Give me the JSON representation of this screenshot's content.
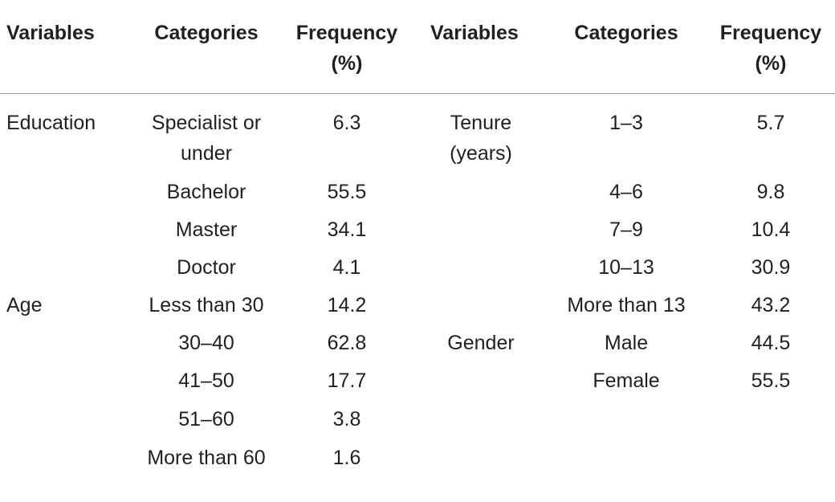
{
  "headers": [
    "Variables",
    "Categories",
    "Frequency (%)",
    "Variables",
    "Categories",
    "Frequency (%)"
  ],
  "left_rows": [
    {
      "variable": "Education",
      "category": "Specialist or under",
      "frequency": "6.3"
    },
    {
      "variable": "",
      "category": "Bachelor",
      "frequency": "55.5"
    },
    {
      "variable": "",
      "category": "Master",
      "frequency": "34.1"
    },
    {
      "variable": "",
      "category": "Doctor",
      "frequency": "4.1"
    },
    {
      "variable": "Age",
      "category": "Less than 30",
      "frequency": "14.2"
    },
    {
      "variable": "",
      "category": "30–40",
      "frequency": "62.8"
    },
    {
      "variable": "",
      "category": "41–50",
      "frequency": "17.7"
    },
    {
      "variable": "",
      "category": "51–60",
      "frequency": "3.8"
    },
    {
      "variable": "",
      "category": "More than 60",
      "frequency": "1.6"
    }
  ],
  "right_rows": [
    {
      "variable": "Tenure (years)",
      "category": "1–3",
      "frequency": "5.7"
    },
    {
      "variable": "",
      "category": "4–6",
      "frequency": "9.8"
    },
    {
      "variable": "",
      "category": "7–9",
      "frequency": "10.4"
    },
    {
      "variable": "",
      "category": "10–13",
      "frequency": "30.9"
    },
    {
      "variable": "",
      "category": "More than 13",
      "frequency": "43.2"
    },
    {
      "variable": "Gender",
      "category": "Male",
      "frequency": "44.5"
    },
    {
      "variable": "",
      "category": "Female",
      "frequency": "55.5"
    }
  ]
}
